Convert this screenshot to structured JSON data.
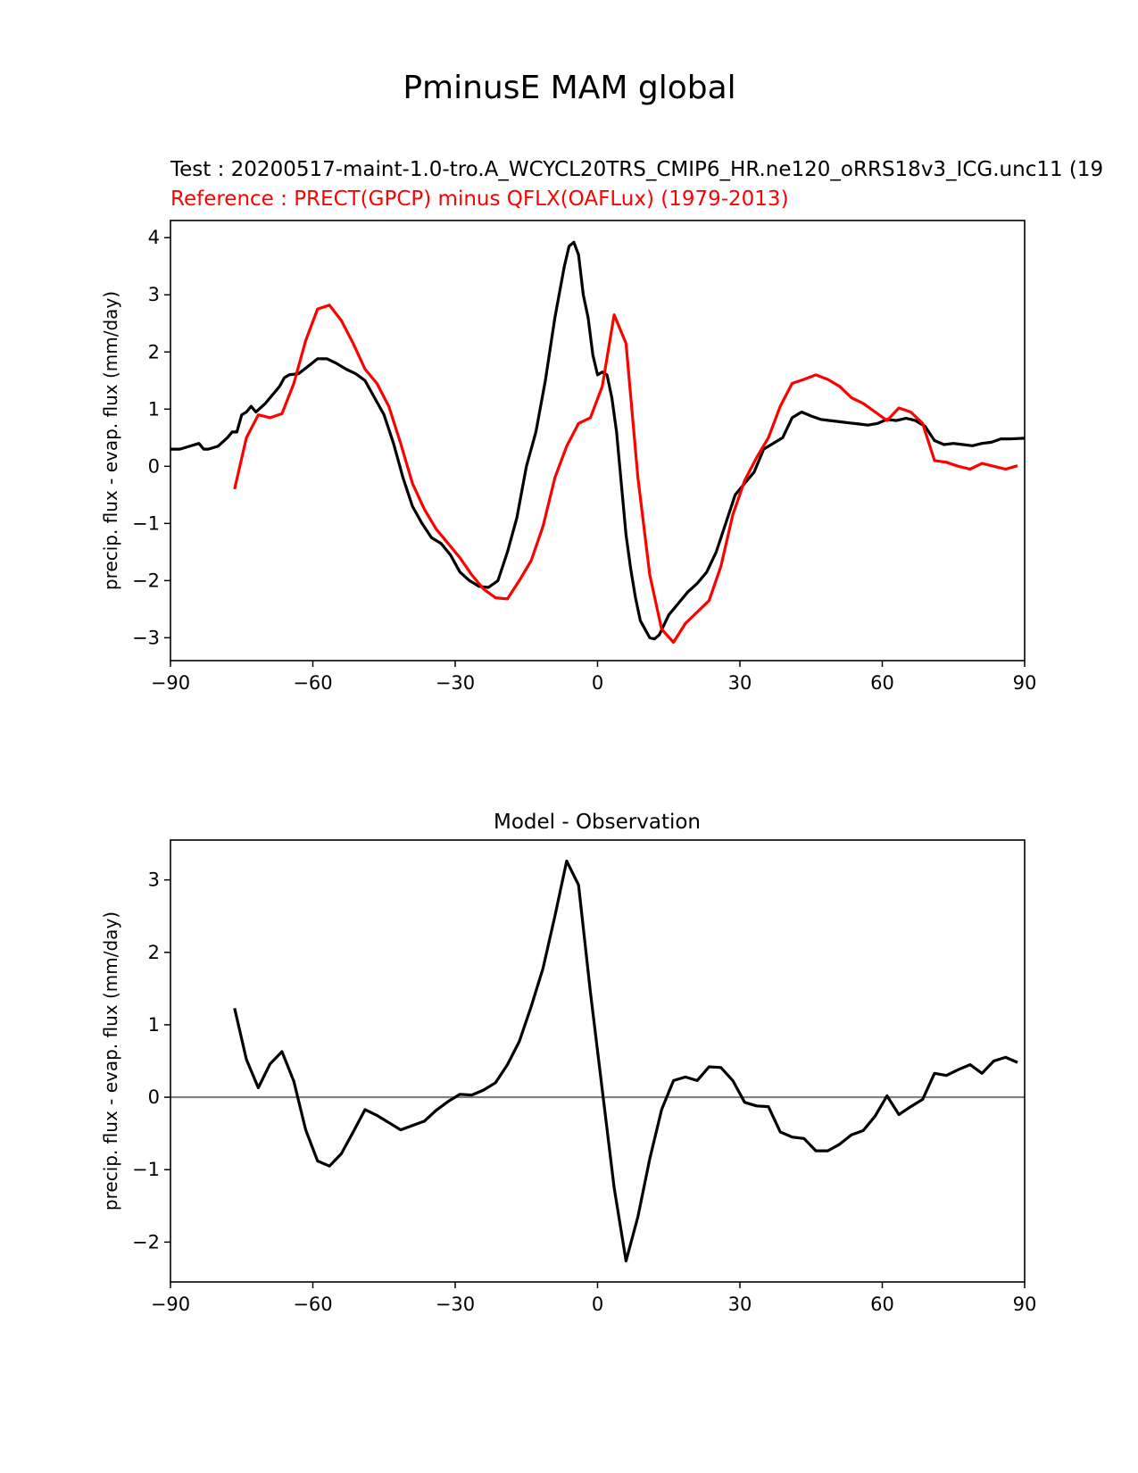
{
  "title": "PminusE MAM global",
  "colors": {
    "test": "#000000",
    "reference": "#ff0000",
    "zero_line": "#808080"
  },
  "chart_data": [
    {
      "type": "line",
      "test_label": "Test : 20200517-maint-1.0-tro.A_WCYCL20TRS_CMIP6_HR.ne120_oRRS18v3_ICG.unc11 (19",
      "reference_label": "Reference : PRECT(GPCP) minus QFLX(OAFLux) (1979-2013)",
      "xlabel": "",
      "ylabel": "precip. flux - evap. flux (mm/day)",
      "xlim": [
        -90,
        90
      ],
      "ylim": [
        -3.4,
        4.3
      ],
      "xticks": [
        -90,
        -60,
        -30,
        0,
        30,
        60,
        90
      ],
      "xtick_labels": [
        "−90",
        "−60",
        "−30",
        "0",
        "30",
        "60",
        "90"
      ],
      "yticks": [
        -3,
        -2,
        -1,
        0,
        1,
        2,
        3,
        4
      ],
      "ytick_labels": [
        "−3",
        "−2",
        "−1",
        "0",
        "1",
        "2",
        "3",
        "4"
      ],
      "series": [
        {
          "name": "Test",
          "x": [
            -90,
            -88,
            -86,
            -84,
            -83,
            -82,
            -80,
            -78,
            -77,
            -76,
            -75,
            -74,
            -73,
            -72,
            -70,
            -69,
            -68,
            -67,
            -66,
            -65,
            -63,
            -61,
            -59,
            -57,
            -55,
            -53,
            -51,
            -49,
            -47,
            -45,
            -43,
            -41,
            -39,
            -37,
            -35,
            -33,
            -31,
            -29,
            -27,
            -25,
            -23,
            -21,
            -19,
            -17,
            -15,
            -13,
            -11,
            -9,
            -7,
            -6,
            -5,
            -4,
            -3,
            -2,
            -1,
            0,
            1,
            2,
            3,
            4,
            5,
            6,
            7,
            8,
            9,
            10,
            11,
            12,
            13,
            15,
            17,
            19,
            21,
            23,
            25,
            27,
            29,
            31,
            33,
            35,
            37,
            39,
            41,
            43,
            45,
            47,
            49,
            51,
            53,
            55,
            57,
            59,
            61,
            63,
            65,
            67,
            69,
            71,
            73,
            75,
            77,
            79,
            81,
            83,
            85,
            87,
            90
          ],
          "y": [
            0.3,
            0.3,
            0.35,
            0.4,
            0.3,
            0.3,
            0.35,
            0.5,
            0.6,
            0.6,
            0.9,
            0.95,
            1.05,
            0.95,
            1.1,
            1.2,
            1.3,
            1.4,
            1.55,
            1.6,
            1.62,
            1.75,
            1.88,
            1.88,
            1.8,
            1.7,
            1.62,
            1.5,
            1.2,
            0.9,
            0.4,
            -0.2,
            -0.7,
            -1.0,
            -1.25,
            -1.35,
            -1.55,
            -1.85,
            -2.0,
            -2.1,
            -2.12,
            -2.0,
            -1.5,
            -0.9,
            0.0,
            0.6,
            1.5,
            2.6,
            3.5,
            3.85,
            3.92,
            3.7,
            3.0,
            2.6,
            1.95,
            1.6,
            1.65,
            1.6,
            1.2,
            0.6,
            -0.3,
            -1.2,
            -1.8,
            -2.3,
            -2.7,
            -2.85,
            -3.0,
            -3.02,
            -2.95,
            -2.6,
            -2.4,
            -2.2,
            -2.05,
            -1.85,
            -1.5,
            -1.0,
            -0.5,
            -0.3,
            -0.1,
            0.3,
            0.4,
            0.5,
            0.85,
            0.95,
            0.88,
            0.82,
            0.8,
            0.78,
            0.76,
            0.74,
            0.72,
            0.75,
            0.82,
            0.8,
            0.84,
            0.8,
            0.7,
            0.45,
            0.38,
            0.4,
            0.38,
            0.36,
            0.4,
            0.42,
            0.48,
            0.48,
            0.49
          ]
        },
        {
          "name": "Reference",
          "x": [
            -76.5,
            -74,
            -71.5,
            -69,
            -66.5,
            -64,
            -61.5,
            -59,
            -56.5,
            -54,
            -51.5,
            -49,
            -46.5,
            -44,
            -41.5,
            -39,
            -36.5,
            -34,
            -31.5,
            -29,
            -26.5,
            -24,
            -21.5,
            -19,
            -16.5,
            -14,
            -11.5,
            -9,
            -6.5,
            -4,
            -1.5,
            1,
            3.5,
            6,
            8.5,
            11,
            13.5,
            16,
            18.5,
            21,
            23.5,
            26,
            28.5,
            31,
            33.5,
            36,
            38.5,
            41,
            43.5,
            46,
            48.5,
            51,
            53.5,
            56,
            58.5,
            61,
            63.5,
            66,
            68.5,
            71,
            73.5,
            76,
            78.5,
            81,
            83.5,
            86,
            88.5
          ],
          "y": [
            -0.4,
            0.5,
            0.9,
            0.85,
            0.92,
            1.45,
            2.2,
            2.75,
            2.82,
            2.55,
            2.15,
            1.7,
            1.45,
            1.05,
            0.4,
            -0.3,
            -0.75,
            -1.1,
            -1.35,
            -1.6,
            -1.9,
            -2.15,
            -2.3,
            -2.32,
            -2.0,
            -1.65,
            -1.05,
            -0.2,
            0.35,
            0.75,
            0.85,
            1.4,
            2.65,
            2.15,
            -0.2,
            -1.9,
            -2.85,
            -3.08,
            -2.75,
            -2.55,
            -2.35,
            -1.75,
            -0.85,
            -0.25,
            0.15,
            0.5,
            1.05,
            1.45,
            1.52,
            1.6,
            1.52,
            1.4,
            1.2,
            1.1,
            0.95,
            0.8,
            1.02,
            0.95,
            0.75,
            0.1,
            0.07,
            0.0,
            -0.05,
            0.05,
            0.0,
            -0.05,
            0.01
          ]
        }
      ]
    },
    {
      "type": "line",
      "title": "Model - Observation",
      "xlabel": "",
      "ylabel": "precip. flux - evap. flux (mm/day)",
      "xlim": [
        -90,
        90
      ],
      "ylim": [
        -2.55,
        3.55
      ],
      "xticks": [
        -90,
        -60,
        -30,
        0,
        30,
        60,
        90
      ],
      "xtick_labels": [
        "−90",
        "−60",
        "−30",
        "0",
        "30",
        "60",
        "90"
      ],
      "yticks": [
        -2,
        -1,
        0,
        1,
        2,
        3
      ],
      "ytick_labels": [
        "−2",
        "−1",
        "0",
        "1",
        "2",
        "3"
      ],
      "zero_line": 0,
      "series": [
        {
          "name": "Model - Observation",
          "x": [
            -76.5,
            -74,
            -71.5,
            -69,
            -66.5,
            -64,
            -61.5,
            -59,
            -56.5,
            -54,
            -51.5,
            -49,
            -46.5,
            -44,
            -41.5,
            -39,
            -36.5,
            -34,
            -31.5,
            -29,
            -26.5,
            -24,
            -21.5,
            -19,
            -16.5,
            -14,
            -11.5,
            -9,
            -6.5,
            -4,
            -1.5,
            1,
            3.5,
            6,
            8.5,
            11,
            13.5,
            16,
            18.5,
            21,
            23.5,
            26,
            28.5,
            31,
            33.5,
            36,
            38.5,
            41,
            43.5,
            46,
            48.5,
            51,
            53.5,
            56,
            58.5,
            61,
            63.5,
            66,
            68.5,
            71,
            73.5,
            76,
            78.5,
            81,
            83.5,
            86,
            88.5
          ],
          "y": [
            1.23,
            0.52,
            0.13,
            0.46,
            0.63,
            0.22,
            -0.45,
            -0.88,
            -0.95,
            -0.78,
            -0.48,
            -0.17,
            -0.25,
            -0.35,
            -0.45,
            -0.39,
            -0.33,
            -0.18,
            -0.06,
            0.04,
            0.03,
            0.1,
            0.2,
            0.45,
            0.77,
            1.25,
            1.78,
            2.5,
            3.26,
            2.93,
            1.45,
            0.1,
            -1.25,
            -2.26,
            -1.65,
            -0.85,
            -0.17,
            0.23,
            0.28,
            0.23,
            0.42,
            0.41,
            0.23,
            -0.07,
            -0.12,
            -0.13,
            -0.48,
            -0.55,
            -0.57,
            -0.74,
            -0.74,
            -0.65,
            -0.52,
            -0.46,
            -0.26,
            0.02,
            -0.24,
            -0.13,
            -0.03,
            0.33,
            0.3,
            0.38,
            0.45,
            0.33,
            0.5,
            0.55,
            0.48
          ]
        }
      ]
    }
  ]
}
